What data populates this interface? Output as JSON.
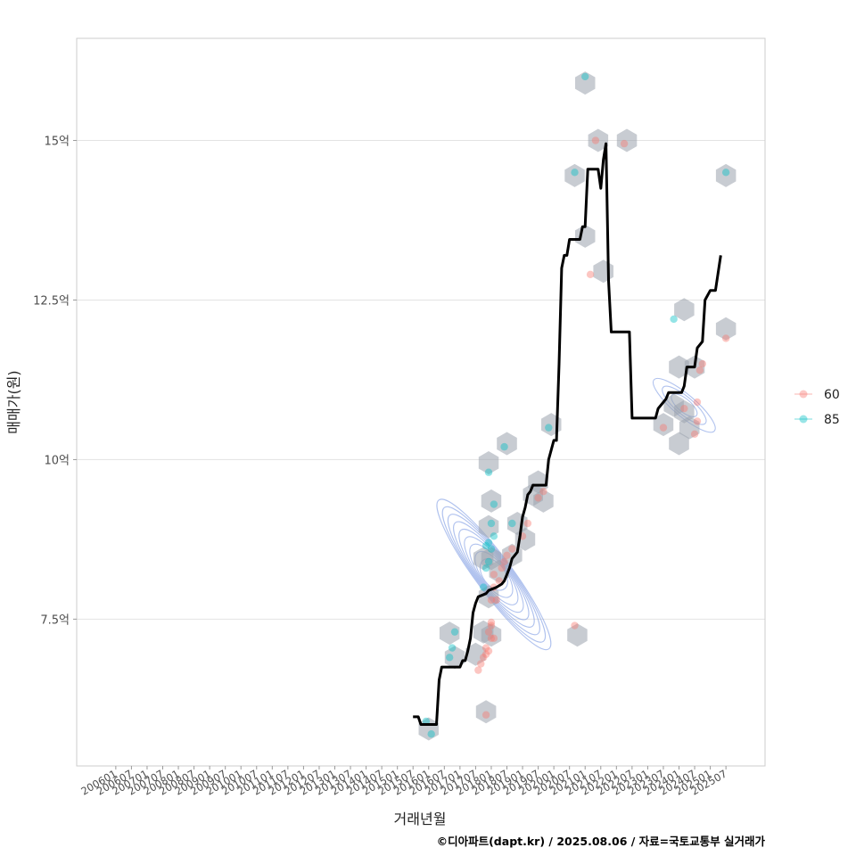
{
  "caption": "©디아파트(dapt.kr) / 2025.08.06 / 자료=국토교통부 실거래가",
  "colors": {
    "series_60": "#F8766D",
    "series_85": "#00BFC4",
    "hexbin": "#9aa3ad",
    "contour": "#6f8fe0",
    "trend": "#000000",
    "grid": "#e3e3e3",
    "panel_border": "#cccccc"
  },
  "chart_data": {
    "type": "scatter",
    "xlabel": "거래년월",
    "ylabel": "매매가(원)",
    "x_range": [
      "2004-10",
      "2026-10"
    ],
    "ylim": [
      5.2,
      16.6
    ],
    "y_ticks": [
      {
        "value": 7.5,
        "label": "7.5억"
      },
      {
        "value": 10,
        "label": "10억"
      },
      {
        "value": 12.5,
        "label": "12.5억"
      },
      {
        "value": 15,
        "label": "15억"
      }
    ],
    "x_tick_labels": [
      "200601",
      "200607",
      "200701",
      "200707",
      "200801",
      "200807",
      "200901",
      "200907",
      "201001",
      "201007",
      "201101",
      "201107",
      "201201",
      "201207",
      "201301",
      "201307",
      "201401",
      "201407",
      "201501",
      "201507",
      "201601",
      "201607",
      "201701",
      "201707",
      "201801",
      "201807",
      "201901",
      "201907",
      "202001",
      "202007",
      "202101",
      "202107",
      "202201",
      "202207",
      "202301",
      "202307",
      "202401",
      "202407",
      "202501",
      "202507"
    ],
    "grid": true,
    "legend": {
      "position": "right",
      "title": "",
      "entries": [
        "60",
        "85"
      ]
    },
    "series": [
      {
        "name": "60",
        "points": [
          [
            "2017-11",
            6.0
          ],
          [
            "2017-08",
            6.7
          ],
          [
            "2017-09",
            6.8
          ],
          [
            "2017-10",
            6.9
          ],
          [
            "2017-11",
            6.95
          ],
          [
            "2017-12",
            7.0
          ],
          [
            "2017-11",
            7.05
          ],
          [
            "2018-01",
            7.2
          ],
          [
            "2018-02",
            7.2
          ],
          [
            "2017-12",
            7.3
          ],
          [
            "2018-01",
            7.4
          ],
          [
            "2018-01",
            7.45
          ],
          [
            "2018-01",
            7.8
          ],
          [
            "2018-03",
            7.8
          ],
          [
            "2018-02",
            8.0
          ],
          [
            "2018-04",
            8.1
          ],
          [
            "2018-02",
            8.2
          ],
          [
            "2018-05",
            8.3
          ],
          [
            "2018-06",
            8.4
          ],
          [
            "2018-07",
            8.5
          ],
          [
            "2018-09",
            8.6
          ],
          [
            "2019-01",
            8.8
          ],
          [
            "2019-03",
            9.0
          ],
          [
            "2019-07",
            9.4
          ],
          [
            "2019-09",
            9.5
          ],
          [
            "2020-09",
            7.4
          ],
          [
            "2021-03",
            12.9
          ],
          [
            "2021-05",
            15.0
          ],
          [
            "2022-04",
            14.95
          ],
          [
            "2023-07",
            10.5
          ],
          [
            "2024-03",
            10.8
          ],
          [
            "2024-07",
            10.4
          ],
          [
            "2024-08",
            10.6
          ],
          [
            "2024-08",
            10.9
          ],
          [
            "2024-09",
            11.4
          ],
          [
            "2024-10",
            11.5
          ],
          [
            "2025-07",
            11.9
          ]
        ]
      },
      {
        "name": "85",
        "points": [
          [
            "2015-12",
            5.9
          ],
          [
            "2016-02",
            5.7
          ],
          [
            "2016-09",
            6.9
          ],
          [
            "2016-10",
            7.05
          ],
          [
            "2016-11",
            7.3
          ],
          [
            "2017-10",
            8.0
          ],
          [
            "2017-11",
            8.3
          ],
          [
            "2017-12",
            8.4
          ],
          [
            "2017-11",
            8.65
          ],
          [
            "2017-12",
            8.7
          ],
          [
            "2018-01",
            8.6
          ],
          [
            "2018-02",
            8.8
          ],
          [
            "2018-01",
            9.0
          ],
          [
            "2018-02",
            9.3
          ],
          [
            "2017-12",
            9.8
          ],
          [
            "2018-06",
            10.2
          ],
          [
            "2018-09",
            9.0
          ],
          [
            "2019-11",
            10.5
          ],
          [
            "2020-09",
            14.5
          ],
          [
            "2021-01",
            16.0
          ],
          [
            "2023-11",
            12.2
          ],
          [
            "2025-07",
            14.5
          ]
        ]
      }
    ],
    "hexbin_centers": [
      [
        "2016-01",
        5.78
      ],
      [
        "2016-09",
        7.28
      ],
      [
        "2016-11",
        6.9
      ],
      [
        "2017-11",
        6.05
      ],
      [
        "2017-07",
        6.95
      ],
      [
        "2017-10",
        7.3
      ],
      [
        "2018-01",
        7.25
      ],
      [
        "2017-12",
        7.85
      ],
      [
        "2017-10",
        8.45
      ],
      [
        "2017-12",
        8.95
      ],
      [
        "2018-01",
        8.45
      ],
      [
        "2018-01",
        9.35
      ],
      [
        "2017-12",
        9.95
      ],
      [
        "2018-07",
        10.25
      ],
      [
        "2018-04",
        8.25
      ],
      [
        "2018-09",
        8.5
      ],
      [
        "2018-11",
        9.0
      ],
      [
        "2019-02",
        8.75
      ],
      [
        "2019-05",
        9.45
      ],
      [
        "2019-07",
        9.65
      ],
      [
        "2019-09",
        9.35
      ],
      [
        "2019-12",
        10.55
      ],
      [
        "2020-10",
        7.25
      ],
      [
        "2020-09",
        14.45
      ],
      [
        "2021-01",
        15.9
      ],
      [
        "2021-06",
        15.0
      ],
      [
        "2021-08",
        12.95
      ],
      [
        "2022-05",
        15.0
      ],
      [
        "2021-01",
        13.5
      ],
      [
        "2023-07",
        10.55
      ],
      [
        "2023-11",
        10.85
      ],
      [
        "2024-01",
        11.45
      ],
      [
        "2024-01",
        10.25
      ],
      [
        "2024-03",
        10.75
      ],
      [
        "2024-05",
        10.5
      ],
      [
        "2024-03",
        12.35
      ],
      [
        "2024-07",
        11.45
      ],
      [
        "2025-07",
        12.05
      ],
      [
        "2025-07",
        14.45
      ]
    ],
    "trend_line": [
      [
        "2015-07",
        5.97
      ],
      [
        "2015-09",
        5.97
      ],
      [
        "2015-10",
        5.85
      ],
      [
        "2016-01",
        5.85
      ],
      [
        "2016-04",
        5.85
      ],
      [
        "2016-05",
        6.55
      ],
      [
        "2016-06",
        6.75
      ],
      [
        "2016-07",
        6.75
      ],
      [
        "2016-10",
        6.75
      ],
      [
        "2017-01",
        6.75
      ],
      [
        "2017-02",
        6.85
      ],
      [
        "2017-03",
        6.85
      ],
      [
        "2017-04",
        7.0
      ],
      [
        "2017-05",
        7.2
      ],
      [
        "2017-06",
        7.6
      ],
      [
        "2017-07",
        7.75
      ],
      [
        "2017-08",
        7.85
      ],
      [
        "2017-11",
        7.9
      ],
      [
        "2017-12",
        7.95
      ],
      [
        "2018-03",
        8.0
      ],
      [
        "2018-05",
        8.05
      ],
      [
        "2018-06",
        8.1
      ],
      [
        "2018-07",
        8.2
      ],
      [
        "2018-08",
        8.3
      ],
      [
        "2018-09",
        8.45
      ],
      [
        "2018-10",
        8.5
      ],
      [
        "2018-11",
        8.55
      ],
      [
        "2018-12",
        8.8
      ],
      [
        "2019-01",
        9.1
      ],
      [
        "2019-02",
        9.25
      ],
      [
        "2019-03",
        9.45
      ],
      [
        "2019-04",
        9.5
      ],
      [
        "2019-05",
        9.6
      ],
      [
        "2019-10",
        9.6
      ],
      [
        "2019-11",
        10.0
      ],
      [
        "2019-12",
        10.15
      ],
      [
        "2020-01",
        10.3
      ],
      [
        "2020-02",
        10.3
      ],
      [
        "2020-03",
        11.5
      ],
      [
        "2020-04",
        13.0
      ],
      [
        "2020-05",
        13.2
      ],
      [
        "2020-06",
        13.2
      ],
      [
        "2020-07",
        13.45
      ],
      [
        "2020-11",
        13.45
      ],
      [
        "2020-12",
        13.65
      ],
      [
        "2021-01",
        13.65
      ],
      [
        "2021-02",
        14.55
      ],
      [
        "2021-06",
        14.55
      ],
      [
        "2021-07",
        14.25
      ],
      [
        "2021-08",
        14.7
      ],
      [
        "2021-09",
        14.95
      ],
      [
        "2021-10",
        12.8
      ],
      [
        "2021-11",
        12.0
      ],
      [
        "2022-06",
        12.0
      ],
      [
        "2022-07",
        10.65
      ],
      [
        "2023-04",
        10.65
      ],
      [
        "2023-05",
        10.8
      ],
      [
        "2023-07",
        10.9
      ],
      [
        "2023-08",
        10.95
      ],
      [
        "2023-09",
        11.05
      ],
      [
        "2024-02",
        11.05
      ],
      [
        "2024-03",
        11.15
      ],
      [
        "2024-04",
        11.45
      ],
      [
        "2024-07",
        11.45
      ],
      [
        "2024-08",
        11.75
      ],
      [
        "2024-10",
        11.85
      ],
      [
        "2024-11",
        12.5
      ],
      [
        "2025-01",
        12.65
      ],
      [
        "2025-03",
        12.65
      ],
      [
        "2025-05",
        13.2
      ]
    ],
    "density_clusters": [
      {
        "center": [
          "2018-02",
          8.2
        ],
        "spread_months": [
          7,
          4.2
        ],
        "spread_y": [
          0.28,
          1.45
        ],
        "tilt": -0.35,
        "levels": 9
      },
      {
        "center": [
          "2024-03",
          10.85
        ],
        "spread_months": [
          4.2,
          2.5
        ],
        "spread_y": [
          0.25,
          0.62
        ],
        "tilt": -0.2,
        "levels": 3
      }
    ]
  }
}
